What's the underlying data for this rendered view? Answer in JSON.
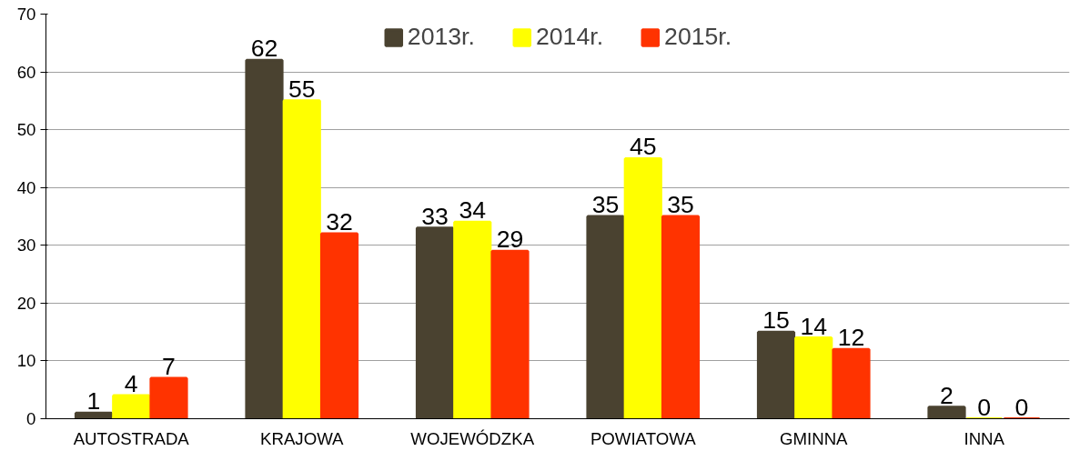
{
  "chart_data": {
    "type": "bar",
    "categories": [
      "AUTOSTRADA",
      "KRAJOWA",
      "WOJEWÓDZKA",
      "POWIATOWA",
      "GMINNA",
      "INNA"
    ],
    "series": [
      {
        "name": "2013r.",
        "color": "#4a4230",
        "values": [
          1,
          62,
          33,
          35,
          15,
          2
        ]
      },
      {
        "name": "2014r.",
        "color": "#ffff00",
        "values": [
          4,
          55,
          34,
          45,
          14,
          0
        ]
      },
      {
        "name": "2015r.",
        "color": "#ff3300",
        "values": [
          7,
          32,
          29,
          35,
          12,
          0
        ]
      }
    ],
    "ylim": [
      0,
      70
    ],
    "yticks": [
      0,
      10,
      20,
      30,
      40,
      50,
      60,
      70
    ],
    "grid": "y",
    "legend": "top",
    "data_labels": true
  }
}
